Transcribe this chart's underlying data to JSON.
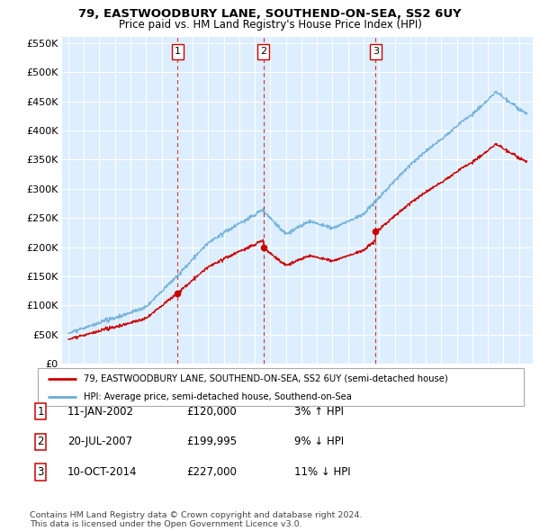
{
  "title": "79, EASTWOODBURY LANE, SOUTHEND-ON-SEA, SS2 6UY",
  "subtitle": "Price paid vs. HM Land Registry's House Price Index (HPI)",
  "ylim": [
    0,
    560000
  ],
  "yticks": [
    0,
    50000,
    100000,
    150000,
    200000,
    250000,
    300000,
    350000,
    400000,
    450000,
    500000,
    550000
  ],
  "hpi_color": "#6baed6",
  "price_color": "#cc0000",
  "transactions": [
    {
      "date_num": 2002.03,
      "price": 120000,
      "label": "1"
    },
    {
      "date_num": 2007.55,
      "price": 199995,
      "label": "2"
    },
    {
      "date_num": 2014.78,
      "price": 227000,
      "label": "3"
    }
  ],
  "t1": 2002.03,
  "p1": 120000,
  "t2": 2007.55,
  "p2": 199995,
  "t3": 2014.78,
  "p3": 227000,
  "legend_price_label": "79, EASTWOODBURY LANE, SOUTHEND-ON-SEA, SS2 6UY (semi-detached house)",
  "legend_hpi_label": "HPI: Average price, semi-detached house, Southend-on-Sea",
  "table_rows": [
    {
      "num": "1",
      "date": "11-JAN-2002",
      "price": "£120,000",
      "pct": "3% ↑ HPI"
    },
    {
      "num": "2",
      "date": "20-JUL-2007",
      "price": "£199,995",
      "pct": "9% ↓ HPI"
    },
    {
      "num": "3",
      "date": "10-OCT-2014",
      "price": "£227,000",
      "pct": "11% ↓ HPI"
    }
  ],
  "footer": "Contains HM Land Registry data © Crown copyright and database right 2024.\nThis data is licensed under the Open Government Licence v3.0.",
  "background_color": "#ffffff",
  "chart_bg_color": "#ddeeff",
  "grid_color": "#ffffff"
}
